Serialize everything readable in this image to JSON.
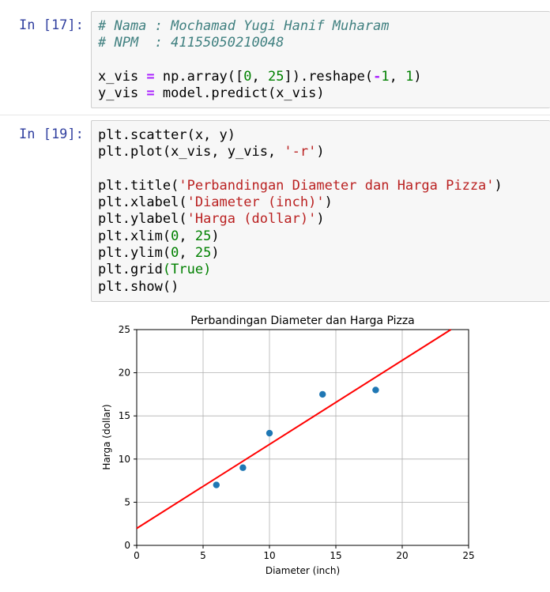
{
  "cells": [
    {
      "prompt": "In [17]:",
      "lines": [
        [
          {
            "t": "# Nama : Mochamad Yugi Hanif Muharam",
            "c": "cm"
          }
        ],
        [
          {
            "t": "# NPM  : 41155050210048",
            "c": "cm"
          }
        ],
        [],
        [
          {
            "t": "x_vis "
          },
          {
            "t": "=",
            "c": "op"
          },
          {
            "t": " np.array(["
          },
          {
            "t": "0",
            "c": "num"
          },
          {
            "t": ", "
          },
          {
            "t": "25",
            "c": "num"
          },
          {
            "t": "]).reshape("
          },
          {
            "t": "-",
            "c": "op"
          },
          {
            "t": "1",
            "c": "num"
          },
          {
            "t": ", "
          },
          {
            "t": "1",
            "c": "num"
          },
          {
            "t": ")"
          }
        ],
        [
          {
            "t": "y_vis "
          },
          {
            "t": "=",
            "c": "op"
          },
          {
            "t": " model.predict(x_vis)"
          }
        ]
      ]
    },
    {
      "prompt": "In [19]:",
      "lines": [
        [
          {
            "t": "plt.scatter(x, y)"
          }
        ],
        [
          {
            "t": "plt.plot(x_vis, y_vis, "
          },
          {
            "t": "'-r'",
            "c": "str"
          },
          {
            "t": ")"
          }
        ],
        [],
        [
          {
            "t": "plt.title("
          },
          {
            "t": "'Perbandingan Diameter dan Harga Pizza'",
            "c": "str"
          },
          {
            "t": ")"
          }
        ],
        [
          {
            "t": "plt.xlabel("
          },
          {
            "t": "'Diameter (inch)'",
            "c": "str"
          },
          {
            "t": ")"
          }
        ],
        [
          {
            "t": "plt.ylabel("
          },
          {
            "t": "'Harga (dollar)'",
            "c": "str"
          },
          {
            "t": ")"
          }
        ],
        [
          {
            "t": "plt.xlim("
          },
          {
            "t": "0",
            "c": "num"
          },
          {
            "t": ", "
          },
          {
            "t": "25",
            "c": "num"
          },
          {
            "t": ")"
          }
        ],
        [
          {
            "t": "plt.ylim("
          },
          {
            "t": "0",
            "c": "num"
          },
          {
            "t": ", "
          },
          {
            "t": "25",
            "c": "num"
          },
          {
            "t": ")"
          }
        ],
        [
          {
            "t": "plt.grid"
          },
          {
            "t": "(True)",
            "c": "kw"
          }
        ],
        [
          {
            "t": "plt.show()"
          }
        ]
      ]
    }
  ],
  "chart_data": {
    "type": "scatter",
    "title": "Perbandingan Diameter dan Harga Pizza",
    "xlabel": "Diameter (inch)",
    "ylabel": "Harga (dollar)",
    "xlim": [
      0,
      25
    ],
    "ylim": [
      0,
      25
    ],
    "xticks": [
      0,
      5,
      10,
      15,
      20,
      25
    ],
    "yticks": [
      0,
      5,
      10,
      15,
      20,
      25
    ],
    "grid": true,
    "points": {
      "x": [
        6,
        8,
        10,
        14,
        18
      ],
      "y": [
        7,
        9,
        13,
        17.5,
        18
      ],
      "color": "#1f77b4"
    },
    "line": {
      "x": [
        0,
        25
      ],
      "y": [
        1.97,
        26.3
      ],
      "color": "#ff0000"
    }
  }
}
